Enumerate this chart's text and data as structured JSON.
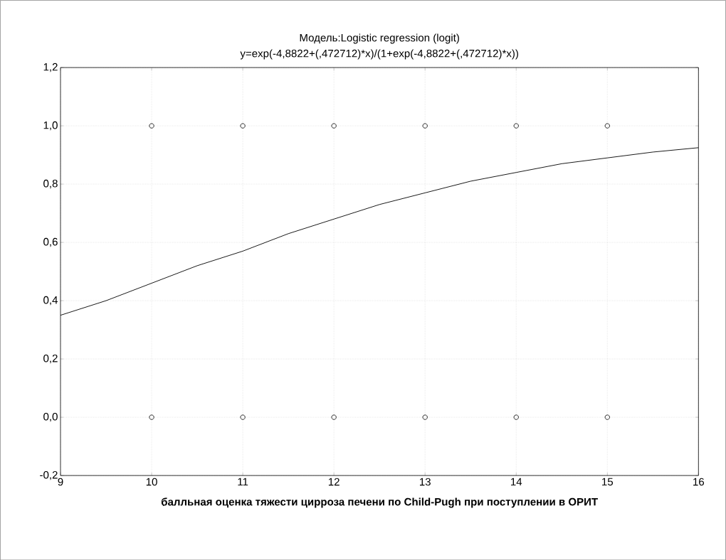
{
  "chart_data": {
    "type": "scatter",
    "title": "Модель:Logistic regression (logit)",
    "subtitle": "y=exp(-4,8822+(,472712)*x)/(1+exp(-4,8822+(,472712)*x))",
    "xlabel": "балльная оценка тяжести цирроза печени по  Child-Pugh при поступлении в ОРИТ",
    "xlim": [
      9,
      16
    ],
    "ylim": [
      -0.2,
      1.2
    ],
    "xticks": [
      9,
      10,
      11,
      12,
      13,
      14,
      15,
      16
    ],
    "yticks": [
      {
        "value": -0.2,
        "label": "-0,2"
      },
      {
        "value": 0,
        "label": "0,0"
      },
      {
        "value": 0.2,
        "label": "0,2"
      },
      {
        "value": 0.4,
        "label": "0,4"
      },
      {
        "value": 0.6,
        "label": "0,6"
      },
      {
        "value": 0.8,
        "label": "0,8"
      },
      {
        "value": 1.0,
        "label": "1,0"
      },
      {
        "value": 1.2,
        "label": "1,2"
      }
    ],
    "grid": true,
    "series": [
      {
        "color": "#000000",
        "marker": "circle",
        "x": [
          10,
          11,
          12,
          13,
          14,
          15,
          10,
          11,
          12,
          13,
          14,
          15
        ],
        "values": [
          1,
          1,
          1,
          1,
          1,
          1,
          0,
          0,
          0,
          0,
          0,
          0
        ]
      },
      {
        "type": "line",
        "color": "#000000",
        "marker": "none",
        "x": [
          9,
          9.5,
          10,
          10.5,
          11,
          11.5,
          12,
          12.5,
          13,
          13.5,
          14,
          14.5,
          15,
          15.5,
          16
        ],
        "values": [
          0.35,
          0.4,
          0.46,
          0.52,
          0.57,
          0.63,
          0.68,
          0.73,
          0.77,
          0.81,
          0.84,
          0.87,
          0.89,
          0.91,
          0.925
        ]
      }
    ]
  }
}
